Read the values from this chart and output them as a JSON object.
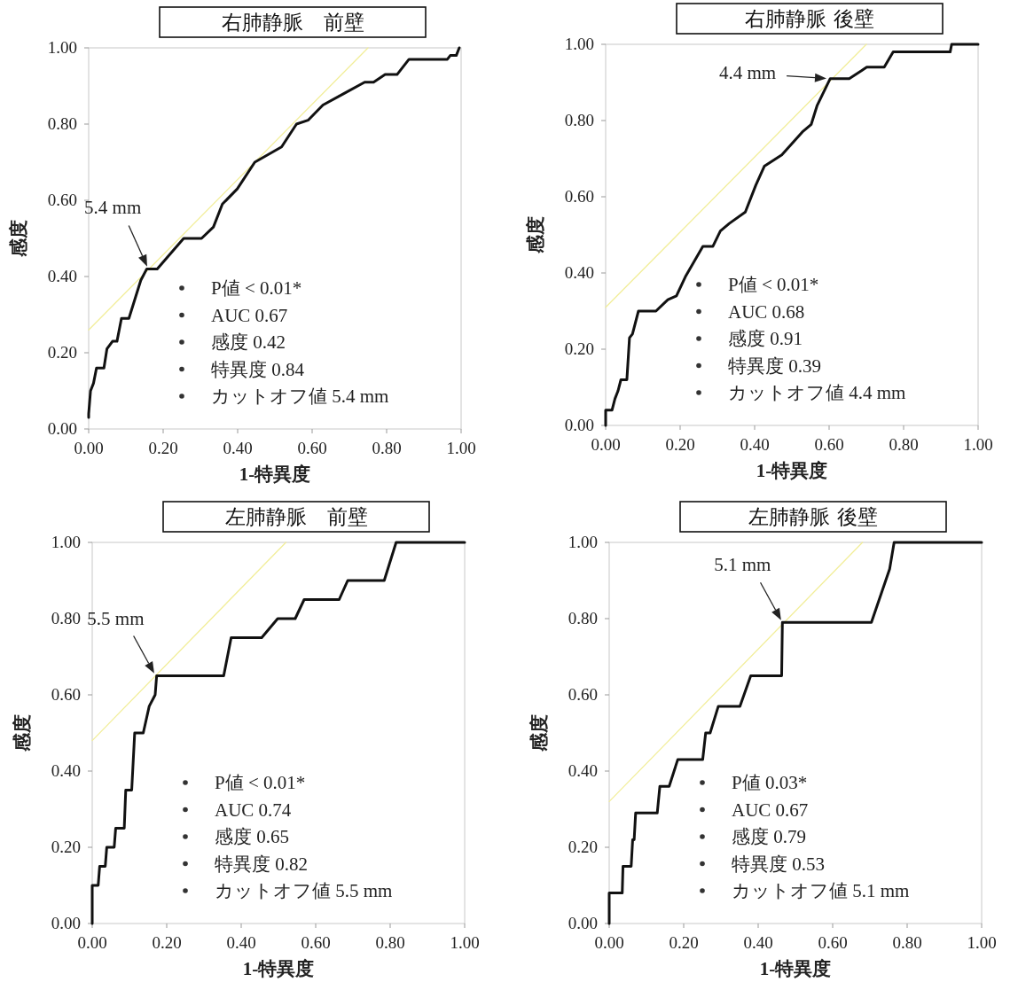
{
  "chart_data": [
    {
      "type": "line",
      "title": "右肺静脈　前壁",
      "xlabel": "1-特異度",
      "ylabel": "感度",
      "xlim": [
        0,
        1
      ],
      "ylim": [
        0,
        1
      ],
      "xticks": [
        {
          "value": 0,
          "label": "0.00"
        },
        {
          "value": 0.2,
          "label": "0.20"
        },
        {
          "value": 0.4,
          "label": "0.40"
        },
        {
          "value": 0.6,
          "label": "0.60"
        },
        {
          "value": 0.8,
          "label": "0.80"
        },
        {
          "value": 1,
          "label": "1.00"
        }
      ],
      "yticks": [
        {
          "value": 0,
          "label": "0.00"
        },
        {
          "value": 0.2,
          "label": "0.20"
        },
        {
          "value": 0.4,
          "label": "0.40"
        },
        {
          "value": 0.6,
          "label": "0.60"
        },
        {
          "value": 0.8,
          "label": "0.80"
        },
        {
          "value": 1,
          "label": "1.00"
        }
      ],
      "series": [
        {
          "color": "#f2ee9a",
          "x": [
            0,
            0.75
          ],
          "values": [
            0.26,
            1.0
          ]
        },
        {
          "color": "#111111",
          "x": [
            0,
            0,
            0.005,
            0.013,
            0.021,
            0.041,
            0.049,
            0.064,
            0.076,
            0.088,
            0.108,
            0.124,
            0.14,
            0.156,
            0.184,
            0.255,
            0.303,
            0.335,
            0.359,
            0.399,
            0.446,
            0.518,
            0.558,
            0.589,
            0.629,
            0.685,
            0.741,
            0.765,
            0.796,
            0.828,
            0.86,
            0.963,
            0.971,
            0.987,
            0.995
          ],
          "values": [
            0.03,
            0.04,
            0.1,
            0.12,
            0.16,
            0.16,
            0.21,
            0.23,
            0.23,
            0.29,
            0.29,
            0.34,
            0.39,
            0.42,
            0.42,
            0.5,
            0.5,
            0.53,
            0.59,
            0.63,
            0.7,
            0.74,
            0.8,
            0.81,
            0.85,
            0.88,
            0.91,
            0.91,
            0.93,
            0.93,
            0.97,
            0.97,
            0.98,
            0.98,
            1.0
          ]
        }
      ],
      "annotations": [
        {
          "text": "5.4 mm",
          "x": 0.16,
          "y": 0.42
        },
        "P値 < 0.01*",
        "AUC 0.67",
        "感度 0.42",
        "特異度 0.84",
        "カットオフ値 5.4 mm"
      ]
    },
    {
      "type": "line",
      "title": "右肺静脈 後壁",
      "xlabel": "1-特異度",
      "ylabel": "感度",
      "xlim": [
        0,
        1
      ],
      "ylim": [
        0,
        1
      ],
      "xticks": [
        {
          "value": 0,
          "label": "0.00"
        },
        {
          "value": 0.2,
          "label": "0.20"
        },
        {
          "value": 0.4,
          "label": "0.40"
        },
        {
          "value": 0.6,
          "label": "0.60"
        },
        {
          "value": 0.8,
          "label": "0.80"
        },
        {
          "value": 1,
          "label": "1.00"
        }
      ],
      "yticks": [
        {
          "value": 0,
          "label": "0.00"
        },
        {
          "value": 0.2,
          "label": "0.20"
        },
        {
          "value": 0.4,
          "label": "0.40"
        },
        {
          "value": 0.6,
          "label": "0.60"
        },
        {
          "value": 0.8,
          "label": "0.80"
        },
        {
          "value": 1,
          "label": "1.00"
        }
      ],
      "series": [
        {
          "color": "#f2ee9a",
          "x": [
            0,
            0.7
          ],
          "values": [
            0.31,
            1.0
          ]
        },
        {
          "color": "#111111",
          "x": [
            0,
            0,
            0.017,
            0.025,
            0.033,
            0.041,
            0.057,
            0.064,
            0.072,
            0.088,
            0.135,
            0.167,
            0.19,
            0.214,
            0.261,
            0.288,
            0.308,
            0.332,
            0.375,
            0.403,
            0.426,
            0.473,
            0.528,
            0.552,
            0.568,
            0.603,
            0.654,
            0.686,
            0.701,
            0.748,
            0.772,
            0.925,
            0.929,
            1.0
          ],
          "values": [
            0,
            0.04,
            0.04,
            0.07,
            0.09,
            0.12,
            0.12,
            0.23,
            0.24,
            0.3,
            0.3,
            0.33,
            0.34,
            0.39,
            0.47,
            0.47,
            0.51,
            0.53,
            0.56,
            0.63,
            0.68,
            0.71,
            0.77,
            0.79,
            0.84,
            0.91,
            0.91,
            0.93,
            0.94,
            0.94,
            0.98,
            0.98,
            1.0,
            1.0
          ]
        }
      ],
      "annotations": [
        {
          "text": "4.4 mm",
          "x": 0.6,
          "y": 0.91
        },
        "P値 < 0.01*",
        "AUC 0.68",
        "感度 0.91",
        "特異度 0.39",
        "カットオフ値 4.4 mm"
      ]
    },
    {
      "type": "line",
      "title": "左肺静脈　前壁",
      "xlabel": "1-特異度",
      "ylabel": "感度",
      "xlim": [
        0,
        1
      ],
      "ylim": [
        0,
        1
      ],
      "xticks": [
        {
          "value": 0,
          "label": "0.00"
        },
        {
          "value": 0.2,
          "label": "0.20"
        },
        {
          "value": 0.4,
          "label": "0.40"
        },
        {
          "value": 0.6,
          "label": "0.60"
        },
        {
          "value": 0.8,
          "label": "0.80"
        },
        {
          "value": 1,
          "label": "1.00"
        }
      ],
      "yticks": [
        {
          "value": 0,
          "label": "0.00"
        },
        {
          "value": 0.2,
          "label": "0.20"
        },
        {
          "value": 0.4,
          "label": "0.40"
        },
        {
          "value": 0.6,
          "label": "0.60"
        },
        {
          "value": 0.8,
          "label": "0.80"
        },
        {
          "value": 1,
          "label": "1.00"
        }
      ],
      "series": [
        {
          "color": "#f2ee9a",
          "x": [
            0,
            0.52
          ],
          "values": [
            0.48,
            1.0
          ]
        },
        {
          "color": "#111111",
          "x": [
            0,
            0,
            0.016,
            0.02,
            0.035,
            0.039,
            0.059,
            0.063,
            0.086,
            0.09,
            0.106,
            0.114,
            0.137,
            0.153,
            0.169,
            0.173,
            0.353,
            0.373,
            0.455,
            0.498,
            0.545,
            0.569,
            0.663,
            0.686,
            0.784,
            0.816,
            1.0
          ],
          "values": [
            0,
            0.1,
            0.1,
            0.15,
            0.15,
            0.2,
            0.2,
            0.25,
            0.25,
            0.35,
            0.35,
            0.5,
            0.5,
            0.57,
            0.6,
            0.65,
            0.65,
            0.75,
            0.75,
            0.8,
            0.8,
            0.85,
            0.85,
            0.9,
            0.9,
            1.0,
            1.0
          ]
        }
      ],
      "annotations": [
        {
          "text": "5.5 mm",
          "x": 0.17,
          "y": 0.65
        },
        "P値 < 0.01*",
        "AUC 0.74",
        "感度 0.65",
        "特異度 0.82",
        "カットオフ値 5.5 mm"
      ]
    },
    {
      "type": "line",
      "title": "左肺静脈 後壁",
      "xlabel": "1-特異度",
      "ylabel": "感度",
      "xlim": [
        0,
        1
      ],
      "ylim": [
        0,
        1
      ],
      "xticks": [
        {
          "value": 0,
          "label": "0.00"
        },
        {
          "value": 0.2,
          "label": "0.20"
        },
        {
          "value": 0.4,
          "label": "0.40"
        },
        {
          "value": 0.6,
          "label": "0.60"
        },
        {
          "value": 0.8,
          "label": "0.80"
        },
        {
          "value": 1,
          "label": "1.00"
        }
      ],
      "yticks": [
        {
          "value": 0,
          "label": "0.00"
        },
        {
          "value": 0.2,
          "label": "0.20"
        },
        {
          "value": 0.4,
          "label": "0.40"
        },
        {
          "value": 0.6,
          "label": "0.60"
        },
        {
          "value": 0.8,
          "label": "0.80"
        },
        {
          "value": 1,
          "label": "1.00"
        }
      ],
      "series": [
        {
          "color": "#f2ee9a",
          "x": [
            0,
            0.68
          ],
          "values": [
            0.32,
            1.0
          ]
        },
        {
          "color": "#111111",
          "x": [
            0,
            0,
            0.035,
            0.037,
            0.059,
            0.063,
            0.067,
            0.071,
            0.129,
            0.136,
            0.161,
            0.184,
            0.251,
            0.259,
            0.271,
            0.293,
            0.351,
            0.38,
            0.463,
            0.465,
            0.704,
            0.753,
            0.765,
            1.0
          ],
          "values": [
            0,
            0.08,
            0.08,
            0.15,
            0.15,
            0.22,
            0.22,
            0.29,
            0.29,
            0.36,
            0.36,
            0.43,
            0.43,
            0.5,
            0.5,
            0.57,
            0.57,
            0.65,
            0.65,
            0.79,
            0.79,
            0.93,
            1.0,
            1.0
          ]
        }
      ],
      "annotations": [
        {
          "text": "5.1 mm",
          "x": 0.465,
          "y": 0.79
        },
        "P値 0.03*",
        "AUC 0.67",
        "感度 0.79",
        "特異度 0.53",
        "カットオフ値 5.1 mm"
      ]
    }
  ]
}
